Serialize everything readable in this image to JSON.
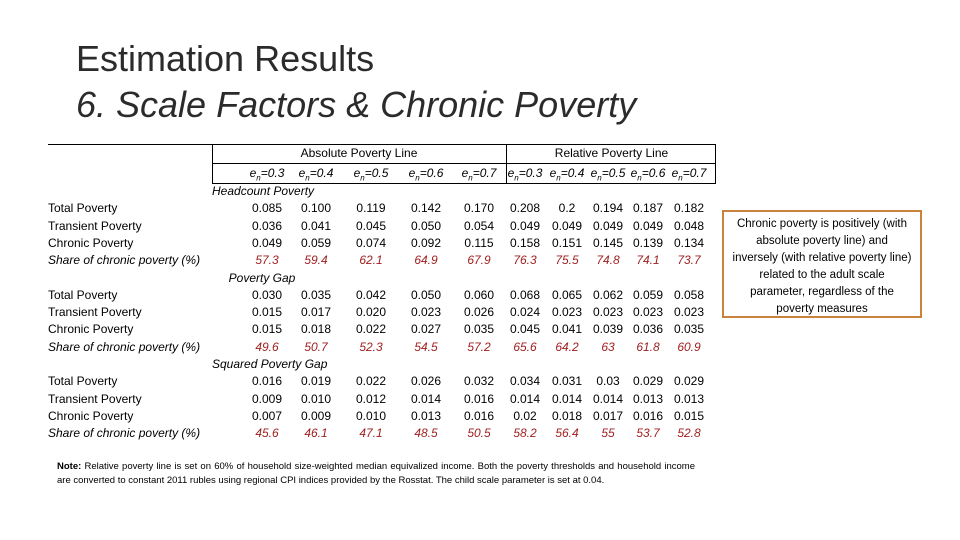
{
  "title": "Estimation Results",
  "subtitle": "6. Scale Factors & Chronic Poverty",
  "headers": {
    "absolute": "Absolute Poverty Line",
    "relative": "Relative Poverty Line",
    "columns": [
      "e_n=0.3",
      "e_n=0.4",
      "e_n=0.5",
      "e_n=0.6",
      "e_n=0.7",
      "e_n=0.3",
      "e_n=0.4",
      "e_n=0.5",
      "e_n=0.6",
      "e_n=0.7"
    ]
  },
  "sections": [
    {
      "name": "Headcount Poverty",
      "rows": [
        {
          "label": "Total Poverty",
          "values": [
            "0.085",
            "0.100",
            "0.119",
            "0.142",
            "0.170",
            "0.208",
            "0.2",
            "0.194",
            "0.187",
            "0.182"
          ]
        },
        {
          "label": "Transient Poverty",
          "values": [
            "0.036",
            "0.041",
            "0.045",
            "0.050",
            "0.054",
            "0.049",
            "0.049",
            "0.049",
            "0.049",
            "0.048"
          ]
        },
        {
          "label": "Chronic Poverty",
          "values": [
            "0.049",
            "0.059",
            "0.074",
            "0.092",
            "0.115",
            "0.158",
            "0.151",
            "0.145",
            "0.139",
            "0.134"
          ]
        },
        {
          "label": "Share of chronic poverty (%)",
          "values": [
            "57.3",
            "59.4",
            "62.1",
            "64.9",
            "67.9",
            "76.3",
            "75.5",
            "74.8",
            "74.1",
            "73.7"
          ],
          "share": true
        }
      ]
    },
    {
      "name": "Poverty Gap",
      "rows": [
        {
          "label": "Total Poverty",
          "values": [
            "0.030",
            "0.035",
            "0.042",
            "0.050",
            "0.060",
            "0.068",
            "0.065",
            "0.062",
            "0.059",
            "0.058"
          ]
        },
        {
          "label": "Transient Poverty",
          "values": [
            "0.015",
            "0.017",
            "0.020",
            "0.023",
            "0.026",
            "0.024",
            "0.023",
            "0.023",
            "0.023",
            "0.023"
          ]
        },
        {
          "label": "Chronic Poverty",
          "values": [
            "0.015",
            "0.018",
            "0.022",
            "0.027",
            "0.035",
            "0.045",
            "0.041",
            "0.039",
            "0.036",
            "0.035"
          ]
        },
        {
          "label": "Share of chronic poverty (%)",
          "values": [
            "49.6",
            "50.7",
            "52.3",
            "54.5",
            "57.2",
            "65.6",
            "64.2",
            "63",
            "61.8",
            "60.9"
          ],
          "share": true
        }
      ]
    },
    {
      "name": "Squared Poverty Gap",
      "rows": [
        {
          "label": "Total Poverty",
          "values": [
            "0.016",
            "0.019",
            "0.022",
            "0.026",
            "0.032",
            "0.034",
            "0.031",
            "0.03",
            "0.029",
            "0.029"
          ]
        },
        {
          "label": "Transient Poverty",
          "values": [
            "0.009",
            "0.010",
            "0.012",
            "0.014",
            "0.016",
            "0.014",
            "0.014",
            "0.014",
            "0.013",
            "0.013"
          ]
        },
        {
          "label": "Chronic Poverty",
          "values": [
            "0.007",
            "0.009",
            "0.010",
            "0.013",
            "0.016",
            "0.02",
            "0.018",
            "0.017",
            "0.016",
            "0.015"
          ]
        },
        {
          "label": "Share of chronic poverty (%)",
          "values": [
            "45.6",
            "46.1",
            "47.1",
            "48.5",
            "50.5",
            "58.2",
            "56.4",
            "55",
            "53.7",
            "52.8"
          ],
          "share": true
        }
      ]
    }
  ],
  "note": {
    "label": "Note:",
    "text": "Relative poverty line is set on 60% of household size-weighted median equivalized income. Both the poverty thresholds and household income are converted to constant 2011 rubles using regional CPI indices provided by the Rosstat. The child scale parameter is set at 0.04."
  },
  "callout": "Chronic poverty is positively (with absolute poverty line) and inversely (with relative poverty line) related to the adult scale parameter, regardless of the poverty measures",
  "colors": {
    "share_text": "#a02020",
    "callout_border": "#c9833e"
  }
}
